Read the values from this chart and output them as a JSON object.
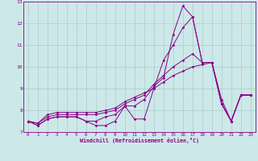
{
  "xlabel": "Windchill (Refroidissement éolien,°C)",
  "background_color": "#cde8e8",
  "line_color": "#880088",
  "grid_color": "#aacccc",
  "xlim": [
    -0.5,
    23.5
  ],
  "ylim": [
    7,
    13
  ],
  "xticks": [
    0,
    1,
    2,
    3,
    4,
    5,
    6,
    7,
    8,
    9,
    10,
    11,
    12,
    13,
    14,
    15,
    16,
    17,
    18,
    19,
    20,
    21,
    22,
    23
  ],
  "yticks": [
    7,
    8,
    9,
    10,
    11,
    12,
    13
  ],
  "lines": [
    {
      "x": [
        0,
        1,
        2,
        3,
        4,
        5,
        6,
        7,
        8,
        9,
        10,
        11,
        12,
        13,
        14,
        15,
        16,
        17,
        18,
        19,
        20,
        21,
        22,
        23
      ],
      "y": [
        7.5,
        7.3,
        7.6,
        7.7,
        7.7,
        7.7,
        7.5,
        7.3,
        7.3,
        7.5,
        8.2,
        7.6,
        7.6,
        9.0,
        10.3,
        11.0,
        11.8,
        12.3,
        10.2,
        10.2,
        8.3,
        7.5,
        8.7,
        8.7
      ]
    },
    {
      "x": [
        0,
        1,
        2,
        3,
        4,
        5,
        6,
        7,
        8,
        9,
        10,
        11,
        12,
        13,
        14,
        15,
        16,
        17,
        18,
        19,
        20,
        21,
        22,
        23
      ],
      "y": [
        7.5,
        7.3,
        7.6,
        7.7,
        7.7,
        7.7,
        7.5,
        7.5,
        7.7,
        7.8,
        8.2,
        8.2,
        8.5,
        9.1,
        9.5,
        11.5,
        12.8,
        12.3,
        10.2,
        10.2,
        8.3,
        7.5,
        8.7,
        8.7
      ]
    },
    {
      "x": [
        0,
        1,
        2,
        3,
        4,
        5,
        6,
        7,
        8,
        9,
        10,
        11,
        12,
        13,
        14,
        15,
        16,
        17,
        18,
        19,
        20,
        21,
        22,
        23
      ],
      "y": [
        7.5,
        7.4,
        7.7,
        7.8,
        7.8,
        7.8,
        7.8,
        7.8,
        7.9,
        8.0,
        8.3,
        8.5,
        8.7,
        9.2,
        9.6,
        10.0,
        10.3,
        10.6,
        10.2,
        10.2,
        8.3,
        7.5,
        8.7,
        8.7
      ]
    },
    {
      "x": [
        0,
        1,
        2,
        3,
        4,
        5,
        6,
        7,
        8,
        9,
        10,
        11,
        12,
        13,
        14,
        15,
        16,
        17,
        18,
        19,
        20,
        21,
        22,
        23
      ],
      "y": [
        7.5,
        7.4,
        7.8,
        7.9,
        7.9,
        7.9,
        7.9,
        7.9,
        8.0,
        8.1,
        8.4,
        8.6,
        8.8,
        9.0,
        9.3,
        9.6,
        9.8,
        10.0,
        10.1,
        10.2,
        8.5,
        7.5,
        8.7,
        8.7
      ]
    }
  ]
}
